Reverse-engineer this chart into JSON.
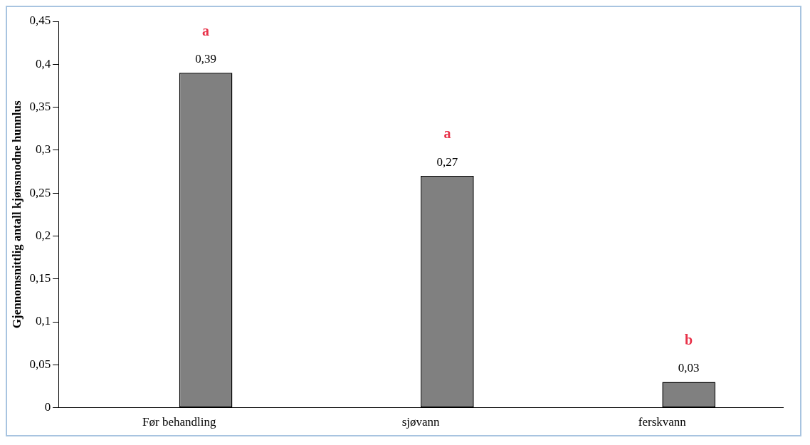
{
  "chart_data": {
    "type": "bar",
    "ylabel": "Gjennomsnittlig antall kjønsmodne hunnlus",
    "categories": [
      "Før behandling",
      "sjøvann",
      "ferskvann"
    ],
    "values": [
      0.39,
      0.27,
      0.03
    ],
    "color": "#808080",
    "value_labels": [
      "0,39",
      "0,27",
      "0,03"
    ],
    "ylim": [
      0,
      0.45
    ],
    "yticks": [
      0,
      {
        "value": 0.05,
        "label": "0,05"
      },
      {
        "value": 0.1,
        "label": "0,1"
      },
      {
        "value": 0.15,
        "label": "0,15"
      },
      {
        "value": 0.2,
        "label": "0,2"
      },
      {
        "value": 0.25,
        "label": "0,25"
      },
      {
        "value": 0.3,
        "label": "0,3"
      },
      {
        "value": 0.35,
        "label": "0,35"
      },
      {
        "value": 0.4,
        "label": "0,4"
      },
      {
        "value": 0.45,
        "label": "0,45"
      }
    ],
    "annotations": [
      "a",
      "a",
      "b"
    ],
    "grid": false,
    "legend": false
  }
}
